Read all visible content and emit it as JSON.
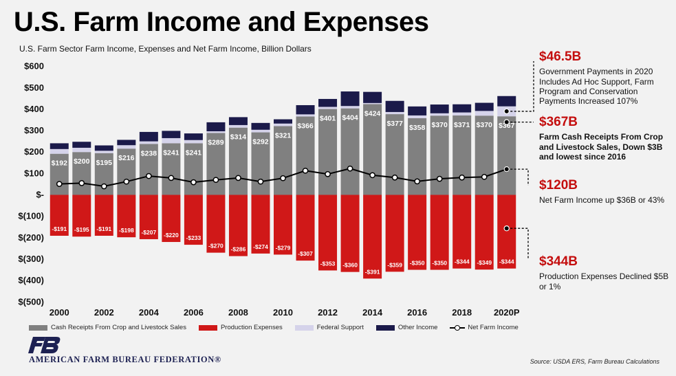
{
  "title": "U.S. Farm Income and Expenses",
  "subtitle": "U.S. Farm Sector Farm Income, Expenses and Net Farm Income, Billion Dollars",
  "colors": {
    "cash_receipts": "#808080",
    "production_expenses": "#d01818",
    "federal_support": "#d5d3ea",
    "other_income": "#1b1a4a",
    "net_line": "#000000",
    "accent_text": "#c40e0e"
  },
  "annotations": {
    "gov": {
      "value": "$46.5B",
      "text": "Government Payments in 2020 Includes Ad Hoc Support, Farm Program and Conservation Payments Increased 107%"
    },
    "cash": {
      "value": "$367B",
      "text": "Farm Cash Receipts From Crop and Livestock Sales, Down $3B and lowest since 2016"
    },
    "net": {
      "value": "$120B",
      "text": "Net Farm Income up $36B or 43%"
    },
    "exp": {
      "value": "$344B",
      "text": "Production Expenses Declined $5B or 1%"
    }
  },
  "legend": {
    "cash": "Cash Receipts From Crop and Livestock Sales",
    "exp": "Production Expenses",
    "fed": "Federal Support",
    "other": "Other Income",
    "net": "Net Farm Income"
  },
  "org_name": "AMERICAN FARM BUREAU FEDERATION®",
  "source": "Source: USDA ERS, Farm Bureau Calculations",
  "chart_data": {
    "type": "bar",
    "stacked": true,
    "title": "U.S. Farm Income and Expenses",
    "xlabel": "",
    "ylabel": "Billion Dollars",
    "ylim": [
      -500,
      600
    ],
    "yticks": [
      600,
      500,
      400,
      300,
      200,
      100,
      0,
      -100,
      -200,
      -300,
      -400,
      -500
    ],
    "ytick_labels": [
      "$600",
      "$500",
      "$400",
      "$300",
      "$200",
      "$100",
      "$-",
      "$(100)",
      "$(200)",
      "$(300)",
      "$(400)",
      "$(500)"
    ],
    "categories": [
      "2000",
      "2001",
      "2002",
      "2003",
      "2004",
      "2005",
      "2006",
      "2007",
      "2008",
      "2009",
      "2010",
      "2011",
      "2012",
      "2013",
      "2014",
      "2015",
      "2016",
      "2017",
      "2018",
      "2019",
      "2020P"
    ],
    "xtick_labels": [
      "2000",
      "",
      "2002",
      "",
      "2004",
      "",
      "2006",
      "",
      "2008",
      "",
      "2010",
      "",
      "2012",
      "",
      "2014",
      "",
      "2016",
      "",
      "2018",
      "",
      "2020P"
    ],
    "series": [
      {
        "name": "Cash Receipts From Crop and Livestock Sales",
        "values": [
          192,
          200,
          195,
          216,
          238,
          241,
          241,
          289,
          314,
          292,
          321,
          366,
          401,
          404,
          424,
          377,
          358,
          370,
          371,
          370,
          367
        ],
        "labels": [
          "$192",
          "$200",
          "$195",
          "$216",
          "$238",
          "$241",
          "$241",
          "$289",
          "$314",
          "$292",
          "$321",
          "$366",
          "$401",
          "$404",
          "$424",
          "$377",
          "$358",
          "$370",
          "$371",
          "$370",
          "$367"
        ]
      },
      {
        "name": "Federal Support",
        "values": [
          22,
          20,
          11,
          16,
          12,
          24,
          15,
          8,
          12,
          12,
          12,
          10,
          10,
          11,
          5,
          10,
          13,
          11,
          14,
          22,
          46.5
        ]
      },
      {
        "name": "Other Income",
        "values": [
          27,
          28,
          25,
          25,
          44,
          34,
          31,
          42,
          37,
          32,
          20,
          43,
          37,
          68,
          52,
          52,
          42,
          41,
          38,
          38,
          48
        ]
      },
      {
        "name": "Production Expenses",
        "values": [
          -191,
          -195,
          -191,
          -198,
          -207,
          -220,
          -233,
          -270,
          -286,
          -274,
          -279,
          -307,
          -353,
          -360,
          -391,
          -359,
          -350,
          -350,
          -344,
          -349,
          -344
        ],
        "labels": [
          "-$191",
          "-$195",
          "-$191",
          "-$198",
          "-$207",
          "-$220",
          "-$233",
          "-$270",
          "-$286",
          "-$274",
          "-$279",
          "-$307",
          "-$353",
          "-$360",
          "-$391",
          "-$359",
          "-$350",
          "-$350",
          "-$344",
          "-$349",
          "-$344"
        ]
      },
      {
        "name": "Net Farm Income",
        "type": "line",
        "values": [
          51,
          55,
          40,
          62,
          88,
          79,
          59,
          70,
          79,
          62,
          78,
          113,
          97,
          123,
          92,
          81,
          63,
          75,
          81,
          84,
          120
        ]
      }
    ],
    "legend_position": "bottom"
  }
}
